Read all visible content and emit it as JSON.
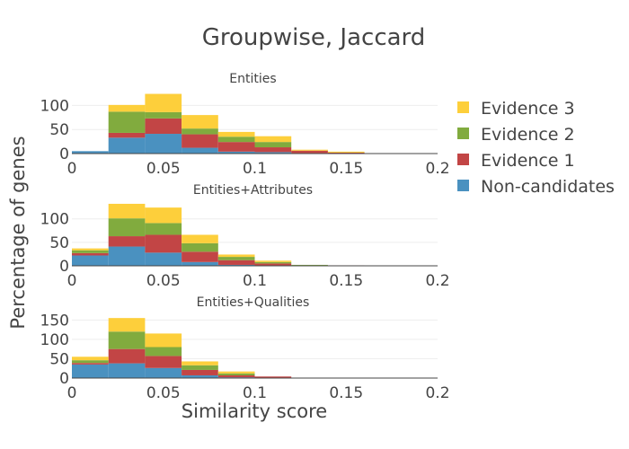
{
  "chart_data": {
    "type": "bar",
    "title": "Groupwise, Jaccard",
    "xlabel": "Similarity score",
    "ylabel": "Percentage of genes",
    "stacked": true,
    "bin_edges": [
      0,
      0.02,
      0.04,
      0.06,
      0.08,
      0.1,
      0.12,
      0.14,
      0.16
    ],
    "xlim": [
      0,
      0.2
    ],
    "x_ticks": [
      0,
      0.05,
      0.1,
      0.15,
      0.2
    ],
    "x_tick_labels": [
      "0",
      "0.05",
      "0.1",
      "0.15",
      "0.2"
    ],
    "legend_position": "right",
    "colors": {
      "Non-candidates": "#4a91c0",
      "Evidence 1": "#c24545",
      "Evidence 2": "#81ab3e",
      "Evidence 3": "#fdcf3b"
    },
    "legend": [
      "Evidence 3",
      "Evidence 2",
      "Evidence 1",
      "Non-candidates"
    ],
    "panels": [
      {
        "subtitle": "Entities",
        "ylim": [
          0,
          125
        ],
        "y_ticks": [
          0,
          50,
          100
        ],
        "series": [
          {
            "name": "Non-candidates",
            "values": [
              5,
              33,
              41,
              12,
              4,
              3,
              1,
              0
            ]
          },
          {
            "name": "Evidence 1",
            "values": [
              0,
              10,
              32,
              28,
              20,
              10,
              5,
              2
            ]
          },
          {
            "name": "Evidence 2",
            "values": [
              0,
              44,
              13,
              12,
              11,
              11,
              0,
              0
            ]
          },
          {
            "name": "Evidence 3",
            "values": [
              0,
              14,
              38,
              28,
              10,
              12,
              2,
              2
            ]
          }
        ]
      },
      {
        "subtitle": "Entities+Attributes",
        "ylim": [
          0,
          130
        ],
        "y_ticks": [
          0,
          50,
          100
        ],
        "series": [
          {
            "name": "Non-candidates",
            "values": [
              22,
              41,
              28,
              8,
              2,
              1,
              0,
              0
            ]
          },
          {
            "name": "Evidence 1",
            "values": [
              5,
              22,
              38,
              22,
              10,
              4,
              1,
              1
            ]
          },
          {
            "name": "Evidence 2",
            "values": [
              6,
              38,
              25,
              18,
              7,
              3,
              1,
              0
            ]
          },
          {
            "name": "Evidence 3",
            "values": [
              4,
              31,
              33,
              18,
              5,
              3,
              0,
              0
            ]
          }
        ]
      },
      {
        "subtitle": "Entities+Qualities",
        "ylim": [
          0,
          160
        ],
        "y_ticks": [
          0,
          50,
          100,
          150
        ],
        "series": [
          {
            "name": "Non-candidates",
            "values": [
              35,
              38,
              26,
              7,
              2,
              1,
              0,
              0
            ]
          },
          {
            "name": "Evidence 1",
            "values": [
              4,
              37,
              31,
              14,
              5,
              3,
              1,
              1
            ]
          },
          {
            "name": "Evidence 2",
            "values": [
              7,
              45,
              23,
              12,
              5,
              0,
              0,
              0
            ]
          },
          {
            "name": "Evidence 3",
            "values": [
              9,
              35,
              35,
              10,
              5,
              0,
              0,
              0
            ]
          }
        ]
      }
    ]
  }
}
